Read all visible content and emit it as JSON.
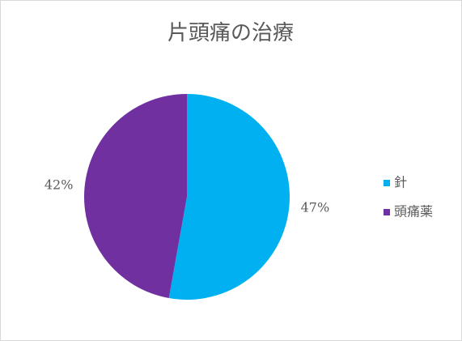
{
  "chart_data": {
    "type": "pie",
    "title": "片頭痛の治療",
    "categories": [
      "針",
      "頭痛薬"
    ],
    "values": [
      47,
      42
    ],
    "value_labels": [
      "47%",
      "42%"
    ],
    "colors": [
      "#00b0f0",
      "#7030a0"
    ],
    "legend": "right"
  }
}
